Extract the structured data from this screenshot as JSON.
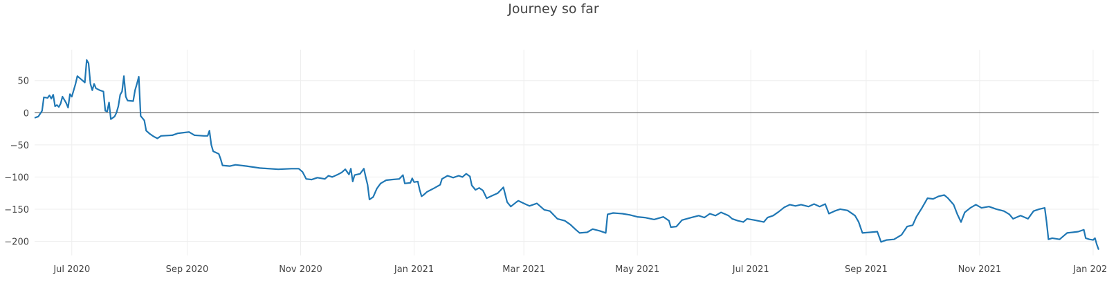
{
  "chart_data": {
    "type": "line",
    "title": "Journey so far",
    "xlabel": "",
    "ylabel": "",
    "xlim": [
      "2020-06-11",
      "2022-01-04"
    ],
    "ylim": [
      -222,
      98
    ],
    "grid": true,
    "legend": "none",
    "line_color": "#1f77b4",
    "zero_line_color": "#444444",
    "grid_color": "#eeeeee",
    "x_ticks": [
      {
        "date": "2020-07-01",
        "label": "Jul 2020"
      },
      {
        "date": "2020-09-01",
        "label": "Sep 2020"
      },
      {
        "date": "2020-11-01",
        "label": "Nov 2020"
      },
      {
        "date": "2021-01-01",
        "label": "Jan 2021"
      },
      {
        "date": "2021-03-01",
        "label": "Mar 2021"
      },
      {
        "date": "2021-05-01",
        "label": "May 2021"
      },
      {
        "date": "2021-07-01",
        "label": "Jul 2021"
      },
      {
        "date": "2021-09-01",
        "label": "Sep 2021"
      },
      {
        "date": "2021-11-01",
        "label": "Nov 2021"
      },
      {
        "date": "2022-01-01",
        "label": "Jan 2022"
      }
    ],
    "y_ticks": [
      {
        "value": 50,
        "label": "50"
      },
      {
        "value": 0,
        "label": "0"
      },
      {
        "value": -50,
        "label": "−50"
      },
      {
        "value": -100,
        "label": "−100"
      },
      {
        "value": -150,
        "label": "−150"
      },
      {
        "value": -200,
        "label": "−200"
      }
    ],
    "points": [
      [
        "2020-06-11",
        -8
      ],
      [
        "2020-06-13",
        -6
      ],
      [
        "2020-06-15",
        3
      ],
      [
        "2020-06-16",
        24
      ],
      [
        "2020-06-18",
        23
      ],
      [
        "2020-06-19",
        27
      ],
      [
        "2020-06-20",
        22
      ],
      [
        "2020-06-21",
        28
      ],
      [
        "2020-06-22",
        10
      ],
      [
        "2020-06-23",
        12
      ],
      [
        "2020-06-24",
        9
      ],
      [
        "2020-06-25",
        14
      ],
      [
        "2020-06-26",
        25
      ],
      [
        "2020-06-27",
        20
      ],
      [
        "2020-06-28",
        15
      ],
      [
        "2020-06-29",
        8
      ],
      [
        "2020-06-30",
        29
      ],
      [
        "2020-07-01",
        25
      ],
      [
        "2020-07-03",
        45
      ],
      [
        "2020-07-04",
        57
      ],
      [
        "2020-07-06",
        52
      ],
      [
        "2020-07-08",
        47
      ],
      [
        "2020-07-09",
        82
      ],
      [
        "2020-07-10",
        77
      ],
      [
        "2020-07-11",
        45
      ],
      [
        "2020-07-12",
        35
      ],
      [
        "2020-07-13",
        45
      ],
      [
        "2020-07-14",
        38
      ],
      [
        "2020-07-16",
        35
      ],
      [
        "2020-07-18",
        33
      ],
      [
        "2020-07-19",
        3
      ],
      [
        "2020-07-20",
        2
      ],
      [
        "2020-07-21",
        16
      ],
      [
        "2020-07-22",
        -10
      ],
      [
        "2020-07-24",
        -6
      ],
      [
        "2020-07-25",
        0
      ],
      [
        "2020-07-26",
        10
      ],
      [
        "2020-07-27",
        28
      ],
      [
        "2020-07-28",
        33
      ],
      [
        "2020-07-29",
        57
      ],
      [
        "2020-07-30",
        25
      ],
      [
        "2020-07-31",
        19
      ],
      [
        "2020-08-03",
        18
      ],
      [
        "2020-08-04",
        35
      ],
      [
        "2020-08-05",
        45
      ],
      [
        "2020-08-06",
        56
      ],
      [
        "2020-08-07",
        -5
      ],
      [
        "2020-08-09",
        -12
      ],
      [
        "2020-08-10",
        -28
      ],
      [
        "2020-08-12",
        -33
      ],
      [
        "2020-08-14",
        -37
      ],
      [
        "2020-08-16",
        -40
      ],
      [
        "2020-08-18",
        -36
      ],
      [
        "2020-08-24",
        -35
      ],
      [
        "2020-08-27",
        -32
      ],
      [
        "2020-09-02",
        -30
      ],
      [
        "2020-09-05",
        -35
      ],
      [
        "2020-09-10",
        -36
      ],
      [
        "2020-09-12",
        -36
      ],
      [
        "2020-09-13",
        -28
      ],
      [
        "2020-09-14",
        -50
      ],
      [
        "2020-09-15",
        -60
      ],
      [
        "2020-09-18",
        -64
      ],
      [
        "2020-09-19",
        -72
      ],
      [
        "2020-09-20",
        -82
      ],
      [
        "2020-09-24",
        -83
      ],
      [
        "2020-09-27",
        -81
      ],
      [
        "2020-10-03",
        -83
      ],
      [
        "2020-10-10",
        -86
      ],
      [
        "2020-10-20",
        -88
      ],
      [
        "2020-10-27",
        -87
      ],
      [
        "2020-10-31",
        -87
      ],
      [
        "2020-11-02",
        -92
      ],
      [
        "2020-11-04",
        -103
      ],
      [
        "2020-11-07",
        -104
      ],
      [
        "2020-11-10",
        -101
      ],
      [
        "2020-11-14",
        -103
      ],
      [
        "2020-11-16",
        -98
      ],
      [
        "2020-11-18",
        -100
      ],
      [
        "2020-11-21",
        -96
      ],
      [
        "2020-11-23",
        -93
      ],
      [
        "2020-11-25",
        -88
      ],
      [
        "2020-11-27",
        -96
      ],
      [
        "2020-11-28",
        -87
      ],
      [
        "2020-11-29",
        -107
      ],
      [
        "2020-11-30",
        -97
      ],
      [
        "2020-12-03",
        -95
      ],
      [
        "2020-12-05",
        -87
      ],
      [
        "2020-12-06",
        -100
      ],
      [
        "2020-12-07",
        -112
      ],
      [
        "2020-12-08",
        -135
      ],
      [
        "2020-12-10",
        -131
      ],
      [
        "2020-12-12",
        -118
      ],
      [
        "2020-12-14",
        -110
      ],
      [
        "2020-12-17",
        -105
      ],
      [
        "2020-12-20",
        -104
      ],
      [
        "2020-12-24",
        -103
      ],
      [
        "2020-12-26",
        -97
      ],
      [
        "2020-12-27",
        -110
      ],
      [
        "2020-12-30",
        -109
      ],
      [
        "2020-12-31",
        -102
      ],
      [
        "2021-01-01",
        -108
      ],
      [
        "2021-01-03",
        -107
      ],
      [
        "2021-01-04",
        -120
      ],
      [
        "2021-01-05",
        -130
      ],
      [
        "2021-01-06",
        -128
      ],
      [
        "2021-01-08",
        -123
      ],
      [
        "2021-01-10",
        -120
      ],
      [
        "2021-01-12",
        -117
      ],
      [
        "2021-01-15",
        -112
      ],
      [
        "2021-01-16",
        -103
      ],
      [
        "2021-01-19",
        -98
      ],
      [
        "2021-01-22",
        -101
      ],
      [
        "2021-01-25",
        -98
      ],
      [
        "2021-01-27",
        -100
      ],
      [
        "2021-01-29",
        -95
      ],
      [
        "2021-01-31",
        -99
      ],
      [
        "2021-02-01",
        -113
      ],
      [
        "2021-02-03",
        -120
      ],
      [
        "2021-02-05",
        -117
      ],
      [
        "2021-02-07",
        -121
      ],
      [
        "2021-02-09",
        -133
      ],
      [
        "2021-02-12",
        -129
      ],
      [
        "2021-02-15",
        -125
      ],
      [
        "2021-02-17",
        -119
      ],
      [
        "2021-02-18",
        -116
      ],
      [
        "2021-02-20",
        -139
      ],
      [
        "2021-02-22",
        -146
      ],
      [
        "2021-02-25",
        -139
      ],
      [
        "2021-02-26",
        -137
      ],
      [
        "2021-03-01",
        -141
      ],
      [
        "2021-03-04",
        -145
      ],
      [
        "2021-03-08",
        -141
      ],
      [
        "2021-03-12",
        -151
      ],
      [
        "2021-03-15",
        -153
      ],
      [
        "2021-03-19",
        -165
      ],
      [
        "2021-03-23",
        -168
      ],
      [
        "2021-03-26",
        -174
      ],
      [
        "2021-03-29",
        -182
      ],
      [
        "2021-03-31",
        -187
      ],
      [
        "2021-04-04",
        -186
      ],
      [
        "2021-04-07",
        -181
      ],
      [
        "2021-04-11",
        -184
      ],
      [
        "2021-04-14",
        -187
      ],
      [
        "2021-04-15",
        -158
      ],
      [
        "2021-04-18",
        -156
      ],
      [
        "2021-04-23",
        -157
      ],
      [
        "2021-04-27",
        -159
      ],
      [
        "2021-05-01",
        -162
      ],
      [
        "2021-05-05",
        -163
      ],
      [
        "2021-05-10",
        -166
      ],
      [
        "2021-05-15",
        -162
      ],
      [
        "2021-05-18",
        -168
      ],
      [
        "2021-05-19",
        -178
      ],
      [
        "2021-05-22",
        -177
      ],
      [
        "2021-05-25",
        -167
      ],
      [
        "2021-05-30",
        -163
      ],
      [
        "2021-06-03",
        -160
      ],
      [
        "2021-06-06",
        -163
      ],
      [
        "2021-06-09",
        -157
      ],
      [
        "2021-06-12",
        -160
      ],
      [
        "2021-06-15",
        -155
      ],
      [
        "2021-06-19",
        -160
      ],
      [
        "2021-06-21",
        -165
      ],
      [
        "2021-06-24",
        -168
      ],
      [
        "2021-06-27",
        -170
      ],
      [
        "2021-06-29",
        -165
      ],
      [
        "2021-07-03",
        -167
      ],
      [
        "2021-07-08",
        -170
      ],
      [
        "2021-07-10",
        -163
      ],
      [
        "2021-07-13",
        -160
      ],
      [
        "2021-07-16",
        -154
      ],
      [
        "2021-07-19",
        -147
      ],
      [
        "2021-07-22",
        -143
      ],
      [
        "2021-07-25",
        -145
      ],
      [
        "2021-07-28",
        -143
      ],
      [
        "2021-08-01",
        -146
      ],
      [
        "2021-08-04",
        -142
      ],
      [
        "2021-08-07",
        -146
      ],
      [
        "2021-08-10",
        -142
      ],
      [
        "2021-08-12",
        -157
      ],
      [
        "2021-08-15",
        -153
      ],
      [
        "2021-08-18",
        -150
      ],
      [
        "2021-08-22",
        -152
      ],
      [
        "2021-08-26",
        -160
      ],
      [
        "2021-08-28",
        -170
      ],
      [
        "2021-08-30",
        -187
      ],
      [
        "2021-09-03",
        -186
      ],
      [
        "2021-09-07",
        -185
      ],
      [
        "2021-09-09",
        -201
      ],
      [
        "2021-09-12",
        -198
      ],
      [
        "2021-09-16",
        -197
      ],
      [
        "2021-09-20",
        -190
      ],
      [
        "2021-09-23",
        -177
      ],
      [
        "2021-09-26",
        -175
      ],
      [
        "2021-09-28",
        -162
      ],
      [
        "2021-10-01",
        -148
      ],
      [
        "2021-10-04",
        -133
      ],
      [
        "2021-10-07",
        -134
      ],
      [
        "2021-10-10",
        -130
      ],
      [
        "2021-10-13",
        -128
      ],
      [
        "2021-10-15",
        -133
      ],
      [
        "2021-10-18",
        -143
      ],
      [
        "2021-10-20",
        -158
      ],
      [
        "2021-10-22",
        -170
      ],
      [
        "2021-10-24",
        -155
      ],
      [
        "2021-10-27",
        -148
      ],
      [
        "2021-10-30",
        -143
      ],
      [
        "2021-11-02",
        -148
      ],
      [
        "2021-11-06",
        -146
      ],
      [
        "2021-11-10",
        -150
      ],
      [
        "2021-11-14",
        -153
      ],
      [
        "2021-11-17",
        -158
      ],
      [
        "2021-11-19",
        -165
      ],
      [
        "2021-11-23",
        -160
      ],
      [
        "2021-11-27",
        -165
      ],
      [
        "2021-11-30",
        -153
      ],
      [
        "2021-12-03",
        -150
      ],
      [
        "2021-12-06",
        -148
      ],
      [
        "2021-12-07",
        -170
      ],
      [
        "2021-12-08",
        -197
      ],
      [
        "2021-12-10",
        -195
      ],
      [
        "2021-12-14",
        -197
      ],
      [
        "2021-12-18",
        -187
      ],
      [
        "2021-12-21",
        -186
      ],
      [
        "2021-12-24",
        -185
      ],
      [
        "2021-12-27",
        -182
      ],
      [
        "2021-12-28",
        -195
      ],
      [
        "2021-12-30",
        -197
      ],
      [
        "2022-01-01",
        -198
      ],
      [
        "2022-01-02",
        -195
      ],
      [
        "2022-01-03",
        -205
      ],
      [
        "2022-01-04",
        -213
      ]
    ]
  }
}
